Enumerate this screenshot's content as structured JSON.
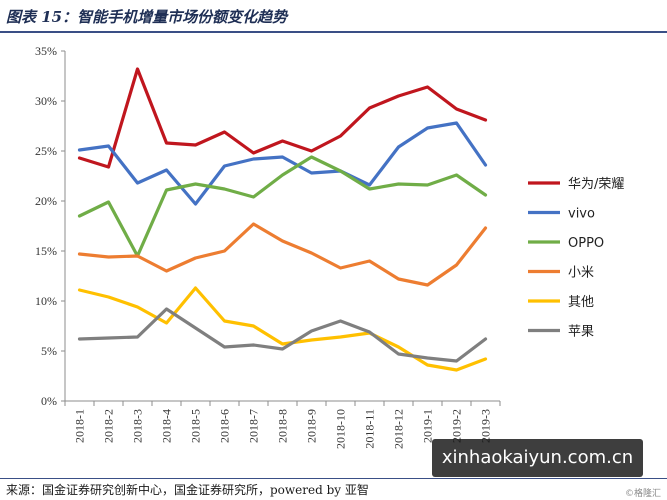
{
  "title": "图表 15：智能手机增量市场份额变化趋势",
  "source": "来源：国金证券研究创新中心，国金证券研究所，powered by 亚智",
  "watermark": "xinhaokaiyun.com.cn",
  "corner_mark": "©格隆汇",
  "chart_data": {
    "type": "line",
    "categories": [
      "2018-1",
      "2018-2",
      "2018-3",
      "2018-4",
      "2018-5",
      "2018-6",
      "2018-7",
      "2018-8",
      "2018-9",
      "2018-10",
      "2018-11",
      "2018-12",
      "2019-1",
      "2019-2",
      "2019-3"
    ],
    "ylim": [
      0,
      35
    ],
    "yticks": [
      "0%",
      "5%",
      "10%",
      "15%",
      "20%",
      "25%",
      "30%",
      "35%"
    ],
    "grid": false,
    "legend_position": "right",
    "series": [
      {
        "name": "华为/荣耀",
        "color": "#c0161e",
        "values": [
          24.3,
          23.4,
          33.2,
          25.8,
          25.6,
          26.9,
          24.8,
          26.0,
          25.0,
          26.5,
          29.3,
          30.5,
          31.4,
          29.2,
          28.1
        ]
      },
      {
        "name": "vivo",
        "color": "#4472c4",
        "values": [
          25.1,
          25.5,
          21.8,
          23.1,
          19.7,
          23.5,
          24.2,
          24.4,
          22.8,
          23.0,
          21.6,
          25.4,
          27.3,
          27.8,
          23.6
        ]
      },
      {
        "name": "OPPO",
        "color": "#70ad47",
        "values": [
          18.5,
          19.9,
          14.5,
          21.1,
          21.7,
          21.2,
          20.4,
          22.6,
          24.4,
          23.0,
          21.2,
          21.7,
          21.6,
          22.6,
          20.6
        ]
      },
      {
        "name": "小米",
        "color": "#ed7d31",
        "values": [
          14.7,
          14.4,
          14.5,
          13.0,
          14.3,
          15.0,
          17.7,
          16.0,
          14.8,
          13.3,
          14.0,
          12.2,
          11.6,
          13.6,
          17.3
        ]
      },
      {
        "name": "其他",
        "color": "#ffc000",
        "values": [
          11.1,
          10.4,
          9.4,
          7.8,
          11.3,
          8.0,
          7.5,
          5.7,
          6.1,
          6.4,
          6.8,
          5.4,
          3.6,
          3.1,
          4.2
        ]
      },
      {
        "name": "苹果",
        "color": "#7f7f7f",
        "values": [
          6.2,
          6.3,
          6.4,
          9.2,
          7.3,
          5.4,
          5.6,
          5.2,
          7.0,
          8.0,
          6.9,
          4.7,
          4.3,
          4.0,
          6.2
        ]
      }
    ]
  }
}
